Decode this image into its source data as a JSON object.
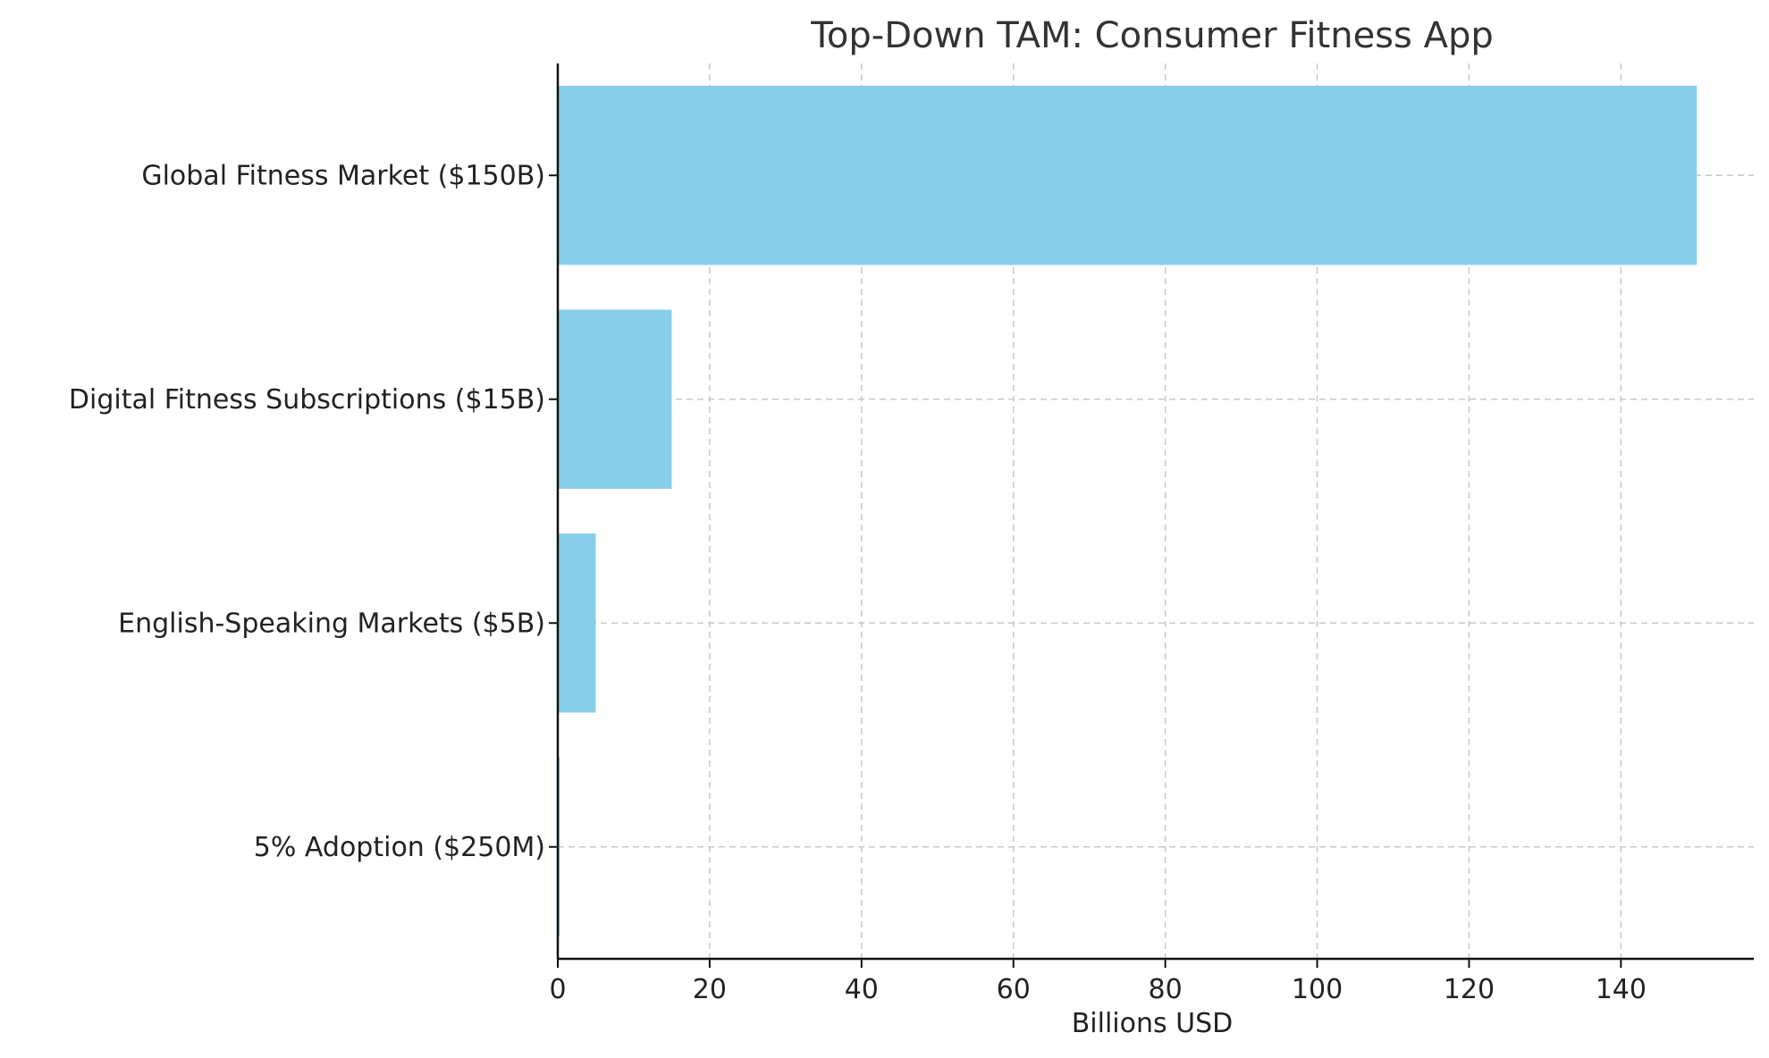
{
  "chart_data": {
    "type": "bar",
    "orientation": "horizontal",
    "title": "Top-Down TAM: Consumer Fitness App",
    "xlabel": "Billions USD",
    "ylabel": "",
    "categories": [
      "Global Fitness Market ($150B)",
      "Digital Fitness Subscriptions ($15B)",
      "English-Speaking Markets ($5B)",
      "5% Adoption ($250M)"
    ],
    "values": [
      150,
      15,
      5,
      0.25
    ],
    "xlim": [
      0,
      157.5
    ],
    "xticks": [
      0,
      20,
      40,
      60,
      80,
      100,
      120,
      140
    ],
    "grid": true,
    "legend": "none",
    "bar_color": "#87CEEB"
  }
}
